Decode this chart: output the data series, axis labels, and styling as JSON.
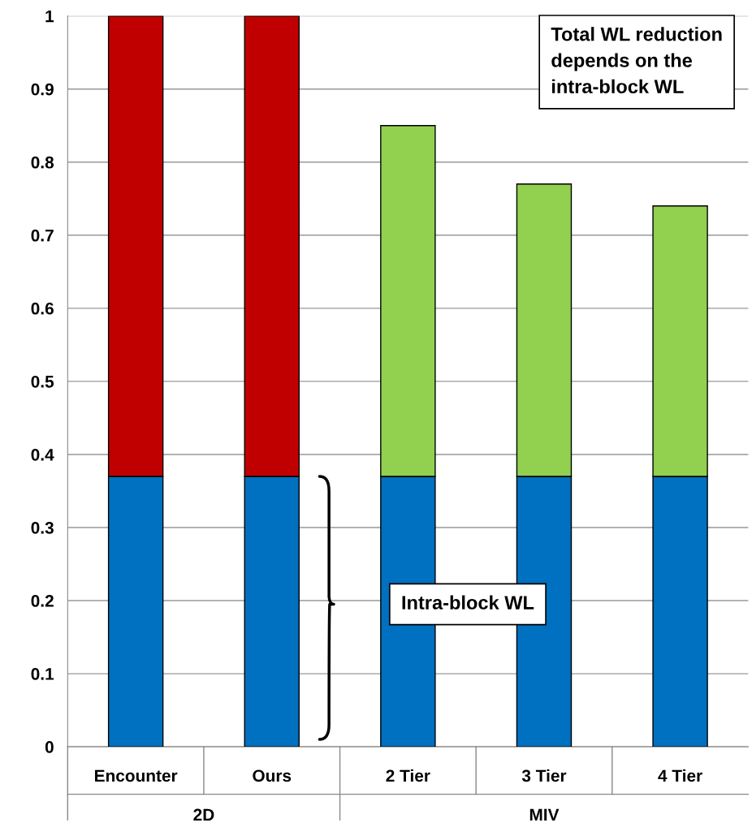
{
  "chart_data": {
    "type": "bar",
    "stacked": true,
    "categories": [
      "Encounter",
      "Ours",
      "2 Tier",
      "3 Tier",
      "4 Tier"
    ],
    "series": [
      {
        "color": "#0070c0",
        "values": [
          0.37,
          0.37,
          0.37,
          0.37,
          0.37
        ]
      },
      {
        "color": "#c00000",
        "values": [
          0.63,
          0.63,
          null,
          null,
          null
        ]
      },
      {
        "color": "#92d050",
        "values": [
          null,
          null,
          0.48,
          0.4,
          0.37
        ]
      }
    ],
    "ylim": [
      0,
      1
    ],
    "yticks": [
      0,
      0.1,
      0.2,
      0.3,
      0.4,
      0.5,
      0.6,
      0.7,
      0.8,
      0.9,
      1
    ],
    "grid": "y",
    "legend": false,
    "annotations": [
      "Total WL reduction\ndepends on the\nintra-block WL",
      "Intra-block WL",
      "2D",
      "MIV"
    ]
  }
}
